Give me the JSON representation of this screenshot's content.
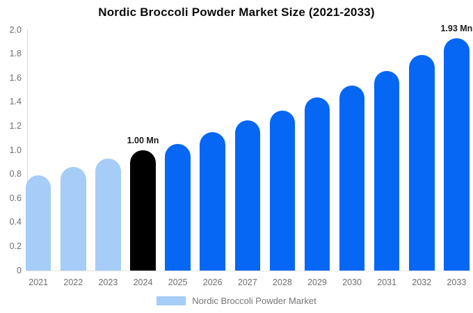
{
  "title": "Nordic Broccoli Powder Market Size (2021-2033)",
  "legend": {
    "label": "Nordic Broccoli Powder Market"
  },
  "colors": {
    "historical_bar": "#A5CDF7",
    "base_year_bar": "#000000",
    "forecast_bar": "#0667F5",
    "axis_line": "#D9D9D9",
    "tick_label": "#6E6E6E",
    "annotation_text": "#1A1A1A",
    "title_text": "#0B0B0B",
    "legend_text": "#757575"
  },
  "chart_data": {
    "type": "bar",
    "title": "Nordic Broccoli Powder Market Size (2021-2033)",
    "unit": "Mn",
    "categories": [
      "2021",
      "2022",
      "2023",
      "2024",
      "2025",
      "2026",
      "2027",
      "2028",
      "2029",
      "2030",
      "2031",
      "2032",
      "2033"
    ],
    "values": [
      0.79,
      0.86,
      0.93,
      1.0,
      1.05,
      1.15,
      1.25,
      1.33,
      1.44,
      1.54,
      1.66,
      1.79,
      1.93
    ],
    "bar_color_roles": [
      "historical",
      "historical",
      "historical",
      "base_year",
      "forecast",
      "forecast",
      "forecast",
      "forecast",
      "forecast",
      "forecast",
      "forecast",
      "forecast",
      "forecast"
    ],
    "data_labels": [
      {
        "index": 3,
        "text": "1.00 Mn"
      },
      {
        "index": 12,
        "text": "1.93 Mn"
      }
    ],
    "ylim": [
      0,
      2.0
    ],
    "ytick_labels": [
      "0",
      "0.2",
      "0.4",
      "0.6",
      "0.8",
      "1.0",
      "1.2",
      "1.4",
      "1.6",
      "1.8",
      "2.0"
    ],
    "grid": false,
    "legend_position": "bottom",
    "series_name": "Nordic Broccoli Powder Market",
    "xlabel": "",
    "ylabel": ""
  }
}
